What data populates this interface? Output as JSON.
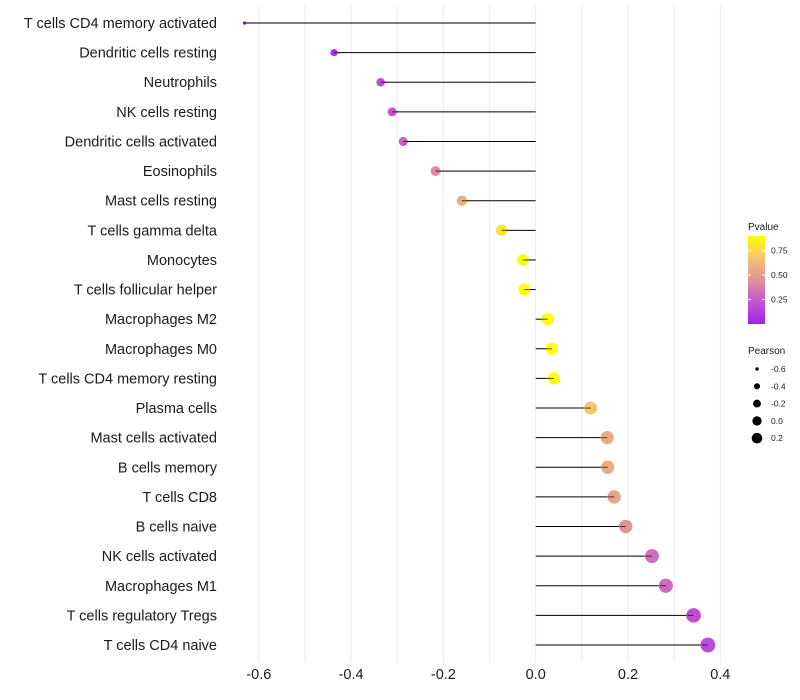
{
  "chart_data": {
    "type": "lollipop",
    "title": "",
    "xlabel": "",
    "ylabel": "",
    "xlim": [
      -0.65,
      0.42
    ],
    "x_ticks": [
      -0.6,
      -0.4,
      -0.2,
      0.0,
      0.2,
      0.4
    ],
    "x_tick_labels": [
      "-0.6",
      "-0.4",
      "-0.2",
      "0.0",
      "0.2",
      "0.4"
    ],
    "grid": true,
    "baseline": 0.0,
    "categories": [
      "T cells CD4 memory activated",
      "Dendritic cells resting",
      "Neutrophils",
      "NK cells resting",
      "Dendritic cells activated",
      "Eosinophils",
      "Mast cells resting",
      "T cells gamma delta",
      "Monocytes",
      "T cells follicular helper",
      "Macrophages M2",
      "Macrophages M0",
      "T cells CD4 memory resting",
      "Plasma cells",
      "Mast cells activated",
      "B cells memory",
      "T cells CD8",
      "B cells naive",
      "NK cells activated",
      "Macrophages M1",
      "T cells regulatory  Tregs ",
      "T cells CD4 naive"
    ],
    "series": [
      {
        "name": "Pearson",
        "values": [
          -0.631,
          -0.437,
          -0.336,
          -0.311,
          -0.287,
          -0.217,
          -0.16,
          -0.074,
          -0.028,
          -0.025,
          0.026,
          0.035,
          0.039,
          0.119,
          0.155,
          0.156,
          0.17,
          0.195,
          0.252,
          0.282,
          0.342,
          0.373
        ]
      },
      {
        "name": "Pvalue",
        "values": [
          0.02,
          0.08,
          0.2,
          0.22,
          0.28,
          0.42,
          0.58,
          0.8,
          0.95,
          0.94,
          0.92,
          0.91,
          0.9,
          0.68,
          0.56,
          0.56,
          0.52,
          0.46,
          0.32,
          0.3,
          0.19,
          0.18
        ]
      }
    ],
    "legends": {
      "color": {
        "title": "Pvalue",
        "low_color": "#a020f0",
        "high_color": "#ffff00",
        "range": [
          0.0,
          0.9
        ],
        "breaks": [
          0.75,
          0.5,
          0.25
        ],
        "break_labels": [
          "0.75",
          "0.50",
          "0.25"
        ],
        "placement": "right"
      },
      "size": {
        "title": "Pearson",
        "breaks": [
          -0.6,
          -0.4,
          -0.2,
          0.0,
          0.2
        ],
        "break_labels": [
          "-0.6",
          "-0.4",
          "-0.2",
          "0.0",
          "0.2"
        ],
        "placement": "right"
      }
    },
    "colors": {
      "segment": "#000000",
      "grid": "#ebebeb",
      "legend_dot": "#000000"
    }
  }
}
